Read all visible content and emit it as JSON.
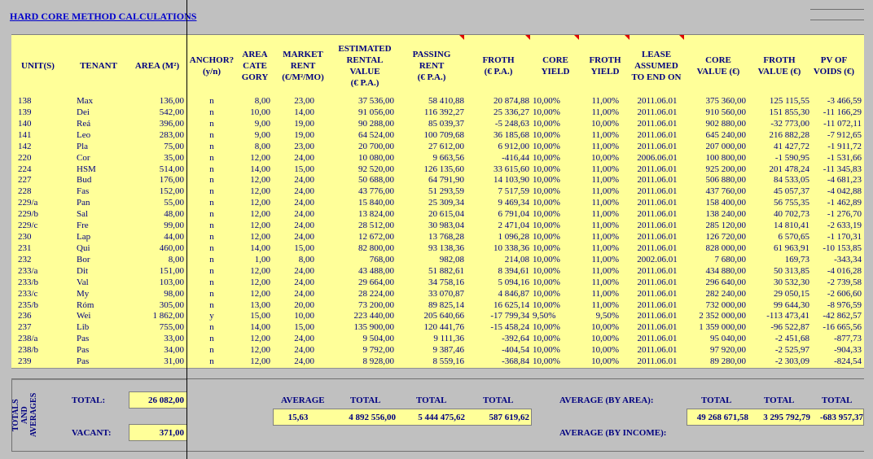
{
  "sheet_title": "HARD CORE METHOD CALCULATIONS",
  "headers": {
    "unit": "UNIT(S)",
    "tenant": "TENANT",
    "area": "AREA (M²)",
    "anchor": "ANCHOR?\n(y/n)",
    "area_category": "AREA\nCATE\nGORY",
    "market_rent": "MARKET\nRENT\n(€/M²/MO)",
    "erv": "ESTIMATED\nRENTAL\nVALUE\n(€ P.A.)",
    "passing_rent": "PASSING\nRENT\n(€ P.A.)",
    "froth": "FROTH\n(€ P.A.)",
    "core_yield": "CORE\nYIELD",
    "froth_yield": "FROTH\nYIELD",
    "lease": "LEASE\nASSUMED\nTO END ON",
    "core_value": "CORE\nVALUE (€)",
    "froth_value": "FROTH\nVALUE (€)",
    "pv_voids": "PV OF\nVOIDS (€)"
  },
  "rows": [
    [
      "138",
      "Max",
      "136,00",
      "n",
      "8,00",
      "23,00",
      "37 536,00",
      "58 410,88",
      "20 874,88",
      "10,00%",
      "11,00%",
      "2011.06.01",
      "375 360,00",
      "125 115,55",
      "-3 466,59"
    ],
    [
      "139",
      "Dei",
      "542,00",
      "n",
      "10,00",
      "14,00",
      "91 056,00",
      "116 392,27",
      "25 336,27",
      "10,00%",
      "11,00%",
      "2011.06.01",
      "910 560,00",
      "151 855,30",
      "-11 166,29"
    ],
    [
      "140",
      "Reá",
      "396,00",
      "n",
      "9,00",
      "19,00",
      "90 288,00",
      "85 039,37",
      "-5 248,63",
      "10,00%",
      "10,00%",
      "2011.06.01",
      "902 880,00",
      "-32 773,00",
      "-11 072,11"
    ],
    [
      "141",
      "Leo",
      "283,00",
      "n",
      "9,00",
      "19,00",
      "64 524,00",
      "100 709,68",
      "36 185,68",
      "10,00%",
      "11,00%",
      "2011.06.01",
      "645 240,00",
      "216 882,28",
      "-7 912,65"
    ],
    [
      "142",
      "Pla",
      "75,00",
      "n",
      "8,00",
      "23,00",
      "20 700,00",
      "27 612,00",
      "6 912,00",
      "10,00%",
      "11,00%",
      "2011.06.01",
      "207 000,00",
      "41 427,72",
      "-1 911,72"
    ],
    [
      "220",
      "Cor",
      "35,00",
      "n",
      "12,00",
      "24,00",
      "10 080,00",
      "9 663,56",
      "-416,44",
      "10,00%",
      "10,00%",
      "2006.06.01",
      "100 800,00",
      "-1 590,95",
      "-1 531,66"
    ],
    [
      "224",
      "HSM",
      "514,00",
      "n",
      "14,00",
      "15,00",
      "92 520,00",
      "126 135,60",
      "33 615,60",
      "10,00%",
      "11,00%",
      "2011.06.01",
      "925 200,00",
      "201 478,24",
      "-11 345,83"
    ],
    [
      "227",
      "Bud",
      "176,00",
      "n",
      "12,00",
      "24,00",
      "50 688,00",
      "64 791,90",
      "14 103,90",
      "10,00%",
      "11,00%",
      "2011.06.01",
      "506 880,00",
      "84 533,05",
      "-4 681,23"
    ],
    [
      "228",
      "Fas",
      "152,00",
      "n",
      "12,00",
      "24,00",
      "43 776,00",
      "51 293,59",
      "7 517,59",
      "10,00%",
      "11,00%",
      "2011.06.01",
      "437 760,00",
      "45 057,37",
      "-4 042,88"
    ],
    [
      "229/a",
      "Pan",
      "55,00",
      "n",
      "12,00",
      "24,00",
      "15 840,00",
      "25 309,34",
      "9 469,34",
      "10,00%",
      "11,00%",
      "2011.06.01",
      "158 400,00",
      "56 755,35",
      "-1 462,89"
    ],
    [
      "229/b",
      "Sal",
      "48,00",
      "n",
      "12,00",
      "24,00",
      "13 824,00",
      "20 615,04",
      "6 791,04",
      "10,00%",
      "11,00%",
      "2011.06.01",
      "138 240,00",
      "40 702,73",
      "-1 276,70"
    ],
    [
      "229/c",
      "Fre",
      "99,00",
      "n",
      "12,00",
      "24,00",
      "28 512,00",
      "30 983,04",
      "2 471,04",
      "10,00%",
      "11,00%",
      "2011.06.01",
      "285 120,00",
      "14 810,41",
      "-2 633,19"
    ],
    [
      "230",
      "Lap",
      "44,00",
      "n",
      "12,00",
      "24,00",
      "12 672,00",
      "13 768,28",
      "1 096,28",
      "10,00%",
      "11,00%",
      "2011.06.01",
      "126 720,00",
      "6 570,65",
      "-1 170,31"
    ],
    [
      "231",
      "Qui",
      "460,00",
      "n",
      "14,00",
      "15,00",
      "82 800,00",
      "93 138,36",
      "10 338,36",
      "10,00%",
      "11,00%",
      "2011.06.01",
      "828 000,00",
      "61 963,91",
      "-10 153,85"
    ],
    [
      "232",
      "Bor",
      "8,00",
      "n",
      "1,00",
      "8,00",
      "768,00",
      "982,08",
      "214,08",
      "10,00%",
      "11,00%",
      "2002.06.01",
      "7 680,00",
      "169,73",
      "-343,34"
    ],
    [
      "233/a",
      "Dit",
      "151,00",
      "n",
      "12,00",
      "24,00",
      "43 488,00",
      "51 882,61",
      "8 394,61",
      "10,00%",
      "11,00%",
      "2011.06.01",
      "434 880,00",
      "50 313,85",
      "-4 016,28"
    ],
    [
      "233/b",
      "Val",
      "103,00",
      "n",
      "12,00",
      "24,00",
      "29 664,00",
      "34 758,16",
      "5 094,16",
      "10,00%",
      "11,00%",
      "2011.06.01",
      "296 640,00",
      "30 532,30",
      "-2 739,58"
    ],
    [
      "233/c",
      "My",
      "98,00",
      "n",
      "12,00",
      "24,00",
      "28 224,00",
      "33 070,87",
      "4 846,87",
      "10,00%",
      "11,00%",
      "2011.06.01",
      "282 240,00",
      "29 050,15",
      "-2 606,60"
    ],
    [
      "235/b",
      "Róm",
      "305,00",
      "n",
      "13,00",
      "20,00",
      "73 200,00",
      "89 825,14",
      "16 625,14",
      "10,00%",
      "11,00%",
      "2011.06.01",
      "732 000,00",
      "99 644,30",
      "-8 976,59"
    ],
    [
      "236",
      "Wei",
      "1 862,00",
      "y",
      "15,00",
      "10,00",
      "223 440,00",
      "205 640,66",
      "-17 799,34",
      "9,50%",
      "9,50%",
      "2011.06.01",
      "2 352 000,00",
      "-113 473,41",
      "-42 862,57"
    ],
    [
      "237",
      "Lib",
      "755,00",
      "n",
      "14,00",
      "15,00",
      "135 900,00",
      "120 441,76",
      "-15 458,24",
      "10,00%",
      "10,00%",
      "2011.06.01",
      "1 359 000,00",
      "-96 522,87",
      "-16 665,56"
    ],
    [
      "238/a",
      "Pas",
      "33,00",
      "n",
      "12,00",
      "24,00",
      "9 504,00",
      "9 111,36",
      "-392,64",
      "10,00%",
      "10,00%",
      "2011.06.01",
      "95 040,00",
      "-2 451,68",
      "-877,73"
    ],
    [
      "238/b",
      "Pas",
      "34,00",
      "n",
      "12,00",
      "24,00",
      "9 792,00",
      "9 387,46",
      "-404,54",
      "10,00%",
      "10,00%",
      "2011.06.01",
      "97 920,00",
      "-2 525,97",
      "-904,33"
    ],
    [
      "239",
      "Pas",
      "31,00",
      "n",
      "12,00",
      "24,00",
      "8 928,00",
      "8 559,16",
      "-368,84",
      "10,00%",
      "10,00%",
      "2011.06.01",
      "89 280,00",
      "-2 303,09",
      "-824,54"
    ]
  ],
  "totals": {
    "side_label": "TOTALS\nAND\nAVERAGES",
    "total_label": "TOTAL:",
    "total_area": "26 082,00",
    "vacant_label": "VACANT:",
    "vacant_area": "371,00",
    "average_label": "AVERAGE",
    "average_market_rent": "15,63",
    "total_label_erv": "TOTAL",
    "total_erv": "4 892 556,00",
    "total_label_passing": "TOTAL",
    "total_passing": "5 444 475,62",
    "total_label_froth": "TOTAL",
    "total_froth": "587 619,62",
    "avg_by_area_label": "AVERAGE (BY AREA):",
    "avg_by_income_label": "AVERAGE (BY INCOME):",
    "total_label_core": "TOTAL",
    "total_core_value": "49 268 671,58",
    "total_label_froth_value": "TOTAL",
    "total_froth_value": "3 295 792,79",
    "total_label_pv": "TOTAL",
    "total_pv_voids": "-683 957,37"
  }
}
